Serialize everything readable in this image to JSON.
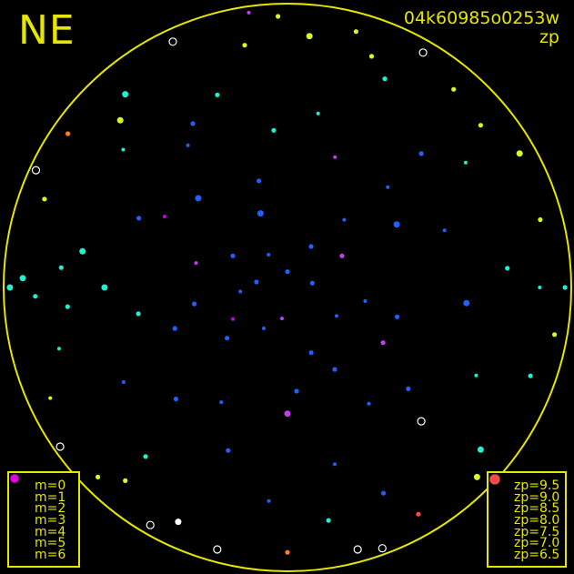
{
  "orientation_label": "NE",
  "title": {
    "line1": "04k60985o0253w",
    "line2": "zp"
  },
  "colors": {
    "frame": "#e6e600",
    "background": "#000000"
  },
  "chart_data": {
    "type": "scatter",
    "projection": "all-sky, zenith at center, north up, east left",
    "axes": {
      "azimuth_deg": [
        0,
        360
      ],
      "zenith_distance_deg": [
        0,
        90
      ]
    },
    "legend_m": [
      {
        "label": "m=0",
        "m": 0
      },
      {
        "label": "m=1",
        "m": 1
      },
      {
        "label": "m=2",
        "m": 2
      },
      {
        "label": "m=3",
        "m": 3
      },
      {
        "label": "m=4",
        "m": 4
      },
      {
        "label": "m=5",
        "m": 5
      },
      {
        "label": "m=6",
        "m": 6
      }
    ],
    "legend_zp": [
      {
        "label": "zp=9.5",
        "zp": 9.5,
        "color": "#c000f0"
      },
      {
        "label": "zp=9.0",
        "zp": 9.0,
        "color": "#c040f0"
      },
      {
        "label": "zp=8.5",
        "zp": 8.5,
        "color": "#2060ff"
      },
      {
        "label": "zp=8.0",
        "zp": 8.0,
        "color": "#20f0d0"
      },
      {
        "label": "zp=7.5",
        "zp": 7.5,
        "color": "#d0ff20"
      },
      {
        "label": "zp=7.0",
        "zp": 7.0,
        "color": "#ff8020"
      },
      {
        "label": "zp=6.5",
        "zp": 6.5,
        "color": "#ff4848"
      }
    ],
    "points_fields": [
      "azimuth_deg",
      "zenith_distance_deg",
      "m",
      "zp"
    ],
    "points": [
      [
        0,
        5,
        4,
        8.5
      ],
      [
        30,
        12,
        5,
        8.5
      ],
      [
        60,
        20,
        4,
        8.5
      ],
      [
        95,
        15,
        5,
        8.5
      ],
      [
        130,
        25,
        4,
        8.5
      ],
      [
        170,
        10,
        5,
        9.0
      ],
      [
        200,
        22,
        4,
        8.5
      ],
      [
        240,
        18,
        5,
        8.5
      ],
      [
        280,
        8,
        4,
        8.5
      ],
      [
        320,
        28,
        5,
        8.5
      ],
      [
        15,
        35,
        4,
        8.5
      ],
      [
        45,
        40,
        3,
        8.5
      ],
      [
        75,
        30,
        5,
        9.0
      ],
      [
        110,
        38,
        4,
        8.5
      ],
      [
        150,
        42,
        5,
        8.5
      ],
      [
        185,
        33,
        4,
        8.5
      ],
      [
        215,
        45,
        5,
        8.5
      ],
      [
        255,
        36,
        4,
        8.5
      ],
      [
        300,
        40,
        3,
        8.5
      ],
      [
        340,
        44,
        5,
        9.0
      ],
      [
        5,
        50,
        4,
        8.0
      ],
      [
        35,
        55,
        5,
        8.5
      ],
      [
        65,
        52,
        4,
        8.5
      ],
      [
        90,
        58,
        3,
        8.0
      ],
      [
        100,
        48,
        4,
        8.0
      ],
      [
        120,
        60,
        5,
        8.5
      ],
      [
        160,
        55,
        4,
        8.5
      ],
      [
        195,
        58,
        5,
        8.5
      ],
      [
        230,
        50,
        4,
        8.5
      ],
      [
        265,
        57,
        3,
        8.5
      ],
      [
        290,
        53,
        5,
        8.5
      ],
      [
        315,
        60,
        4,
        8.5
      ],
      [
        350,
        56,
        5,
        8.0
      ],
      [
        20,
        65,
        4,
        8.0
      ],
      [
        50,
        68,
        5,
        8.0
      ],
      [
        80,
        66,
        3,
        8.0
      ],
      [
        85,
        72,
        4,
        8.0
      ],
      [
        95,
        70,
        4,
        8.0
      ],
      [
        105,
        75,
        5,
        8.0
      ],
      [
        140,
        70,
        4,
        8.0
      ],
      [
        175,
        68,
        5,
        8.5
      ],
      [
        205,
        72,
        4,
        8.5
      ],
      [
        245,
        66,
        5,
        8.0
      ],
      [
        275,
        70,
        4,
        8.0
      ],
      [
        305,
        69,
        5,
        8.0
      ],
      [
        335,
        73,
        4,
        8.0
      ],
      [
        10,
        78,
        4,
        7.5
      ],
      [
        40,
        80,
        3,
        8.0
      ],
      [
        70,
        82,
        4,
        7.5
      ],
      [
        88,
        84,
        3,
        8.0
      ],
      [
        92,
        80,
        4,
        8.0
      ],
      [
        115,
        83,
        5,
        7.5
      ],
      [
        135,
        85,
        4,
        7.5
      ],
      [
        155,
        82,
        3,
        0
      ],
      [
        165,
        86,
        0,
        0
      ],
      [
        180,
        84,
        4,
        7.0
      ],
      [
        195,
        86,
        0,
        0
      ],
      [
        210,
        83,
        4,
        6.5
      ],
      [
        225,
        85,
        3,
        7.5
      ],
      [
        250,
        82,
        4,
        8.0
      ],
      [
        270,
        80,
        5,
        8.0
      ],
      [
        285,
        83,
        4,
        7.5
      ],
      [
        300,
        85,
        3,
        7.5
      ],
      [
        320,
        82,
        4,
        7.5
      ],
      [
        330,
        86,
        0,
        0
      ],
      [
        345,
        84,
        4,
        7.5
      ],
      [
        355,
        80,
        3,
        7.5
      ],
      [
        25,
        86,
        0,
        0
      ],
      [
        55,
        85,
        4,
        7.0
      ],
      [
        65,
        88,
        0,
        0
      ],
      [
        125,
        88,
        0,
        0
      ],
      [
        140,
        80,
        4,
        7.5
      ],
      [
        150,
        87,
        0,
        0
      ],
      [
        200,
        88,
        0,
        0
      ],
      [
        230,
        80,
        3,
        8.0
      ],
      [
        260,
        86,
        4,
        7.5
      ],
      [
        310,
        80,
        4,
        7.5
      ],
      [
        340,
        78,
        4,
        7.5
      ],
      [
        2,
        86,
        4,
        7.5
      ],
      [
        8,
        88,
        5,
        9.0
      ],
      [
        180,
        40,
        3,
        9.0
      ],
      [
        120,
        20,
        5,
        9.5
      ],
      [
        240,
        35,
        4,
        9.0
      ],
      [
        60,
        45,
        5,
        9.5
      ],
      [
        300,
        20,
        4,
        9.0
      ],
      [
        20,
        25,
        3,
        8.5
      ],
      [
        100,
        30,
        4,
        8.5
      ],
      [
        150,
        15,
        5,
        8.5
      ],
      [
        210,
        30,
        4,
        8.5
      ],
      [
        330,
        15,
        4,
        8.5
      ],
      [
        90,
        88,
        3,
        8.0
      ],
      [
        270,
        88,
        4,
        8.0
      ],
      [
        45,
        75,
        3,
        7.5
      ],
      [
        225,
        60,
        0,
        0
      ],
      [
        135,
        50,
        4,
        8.5
      ],
      [
        315,
        45,
        5,
        8.5
      ],
      [
        30,
        60,
        4,
        8.5
      ],
      [
        190,
        75,
        4,
        8.0
      ],
      [
        80,
        10,
        4,
        8.5
      ],
      [
        260,
        25,
        5,
        8.5
      ]
    ]
  }
}
